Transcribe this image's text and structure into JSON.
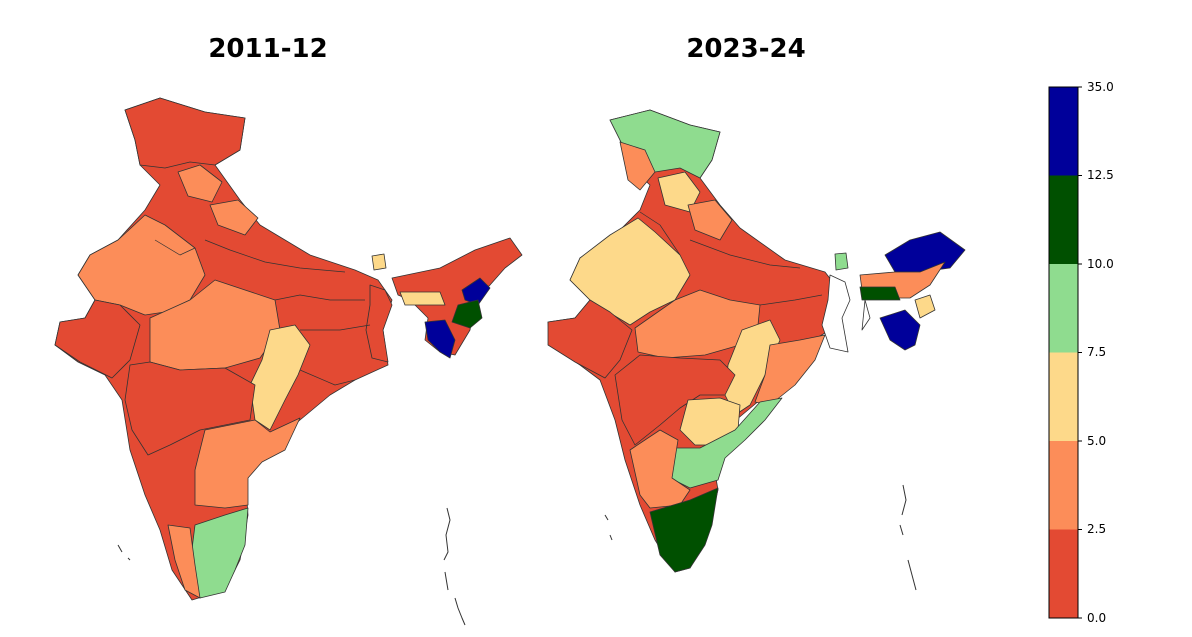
{
  "maps": [
    {
      "title": "2011-12"
    },
    {
      "title": "2023-24"
    }
  ],
  "legend": {
    "ticks": [
      "35.0",
      "12.5",
      "10.0",
      "7.5",
      "5.0",
      "2.5",
      "0.0"
    ],
    "bins": [
      {
        "range": "0.0-2.5",
        "color": "#e34a33"
      },
      {
        "range": "2.5-5.0",
        "color": "#fc8d59"
      },
      {
        "range": "5.0-7.5",
        "color": "#fdd98a"
      },
      {
        "range": "7.5-10.0",
        "color": "#8fdc8f"
      },
      {
        "range": "10.0-12.5",
        "color": "#005000"
      },
      {
        "range": "12.5-35.0",
        "color": "#00009a"
      }
    ]
  }
}
